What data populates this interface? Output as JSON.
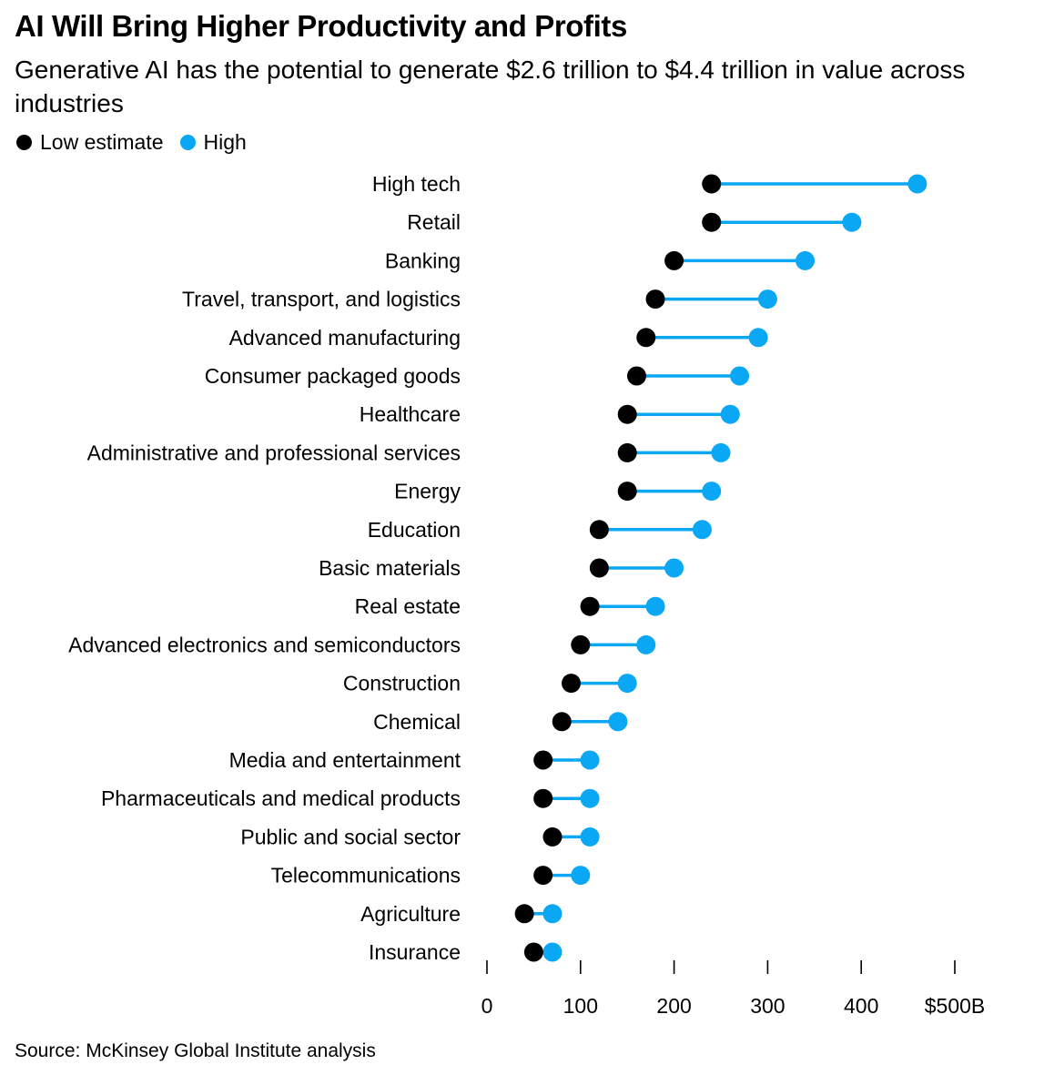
{
  "title": "AI Will Bring Higher Productivity and Profits",
  "subtitle": "Generative AI has the potential to generate $2.6 trillion to $4.4 trillion in value across industries",
  "source": "Source: McKinsey Global Institute analysis",
  "colors": {
    "low": "#000000",
    "high": "#0aa7f5",
    "connector": "#0aa7f5",
    "axis": "#000000",
    "text": "#000000"
  },
  "chart_data": {
    "type": "dumbbell",
    "title": "AI Will Bring Higher Productivity and Profits",
    "xlabel": "",
    "ylabel": "",
    "xlim": [
      0,
      500
    ],
    "x_ticks": [
      0,
      100,
      200,
      300,
      400,
      500
    ],
    "x_tick_labels": [
      "0",
      "100",
      "200",
      "300",
      "400",
      "$500B"
    ],
    "legend": [
      {
        "name": "Low estimate",
        "color": "#000000"
      },
      {
        "name": "High",
        "color": "#0aa7f5"
      }
    ],
    "legend_position": "top-left",
    "categories": [
      "High tech",
      "Retail",
      "Banking",
      "Travel, transport, and logistics",
      "Advanced manufacturing",
      "Consumer packaged goods",
      "Healthcare",
      "Administrative and professional services",
      "Energy",
      "Education",
      "Basic materials",
      "Real estate",
      "Advanced electronics and semiconductors",
      "Construction",
      "Chemical",
      "Media and entertainment",
      "Pharmaceuticals and medical products",
      "Public and social sector",
      "Telecommunications",
      "Agriculture",
      "Insurance"
    ],
    "series": [
      {
        "name": "Low estimate",
        "values": [
          240,
          240,
          200,
          180,
          170,
          160,
          150,
          150,
          150,
          120,
          120,
          110,
          100,
          90,
          80,
          60,
          60,
          70,
          60,
          40,
          50
        ]
      },
      {
        "name": "High",
        "values": [
          460,
          390,
          340,
          300,
          290,
          270,
          260,
          250,
          240,
          230,
          200,
          180,
          170,
          150,
          140,
          110,
          110,
          110,
          100,
          70,
          70
        ]
      }
    ]
  }
}
